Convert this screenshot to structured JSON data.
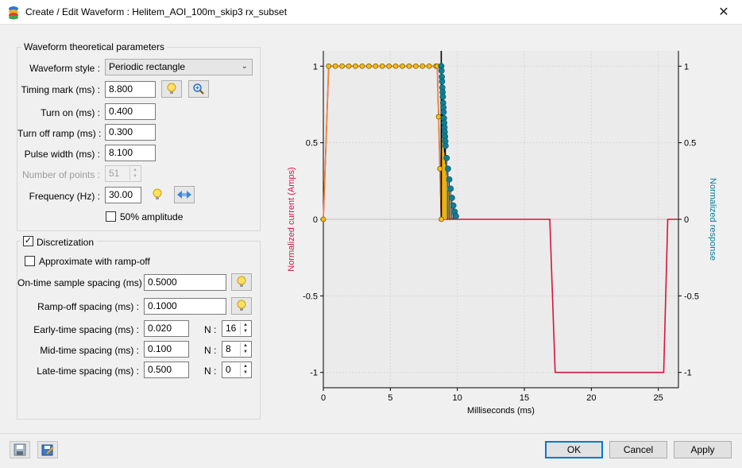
{
  "window": {
    "title": "Create / Edit Waveform : Helitem_AOI_100m_skip3 rx_subset",
    "close_label": "✕"
  },
  "waveform_params": {
    "group_title": "Waveform theoretical parameters",
    "style_label": "Waveform style :",
    "style_value": "Periodic rectangle",
    "timing_mark_label": "Timing mark (ms) :",
    "timing_mark_value": "8.800",
    "turn_on_label": "Turn on (ms) :",
    "turn_on_value": "0.400",
    "turn_off_ramp_label": "Turn off ramp (ms) :",
    "turn_off_ramp_value": "0.300",
    "pulse_width_label": "Pulse width (ms) :",
    "pulse_width_value": "8.100",
    "num_points_label": "Number of points :",
    "num_points_value": "51",
    "frequency_label": "Frequency (Hz) :",
    "frequency_value": "30.00",
    "half_amplitude_label": "50% amplitude",
    "half_amplitude_checked": false
  },
  "discretization": {
    "label": "Discretization",
    "checked": true,
    "approx_label": "Approximate with ramp-off",
    "approx_checked": false,
    "on_time_label": "On-time sample spacing (ms) :",
    "on_time_value": "0.5000",
    "ramp_off_label": "Ramp-off spacing (ms) :",
    "ramp_off_value": "0.1000",
    "early_label": "Early-time spacing (ms) :",
    "early_value": "0.020",
    "early_n_label": "N :",
    "early_n": "16",
    "mid_label": "Mid-time spacing (ms) :",
    "mid_value": "0.100",
    "mid_n_label": "N :",
    "mid_n": "8",
    "late_label": "Late-time spacing (ms) :",
    "late_value": "0.500",
    "late_n_label": "N :",
    "late_n": "0"
  },
  "buttons": {
    "ok": "OK",
    "cancel": "Cancel",
    "apply": "Apply"
  },
  "colors": {
    "current": "#d9133e",
    "response": "#0e7e95",
    "marker_fill": "#f6bd16",
    "pulse_orange": "#f08a2a"
  },
  "chart_data": {
    "type": "line",
    "xlabel": "Milliseconds (ms)",
    "ylabel_left": "Normalized current (Amps)",
    "ylabel_right": "Normalized response",
    "xlim": [
      0,
      26.5
    ],
    "ylim": [
      -1.1,
      1.1
    ],
    "x_ticks": [
      "0",
      "5",
      "10",
      "15",
      "20",
      "25"
    ],
    "y_ticks": [
      "1",
      "0.5",
      "0",
      "-0.5",
      "-1"
    ],
    "grid": true,
    "timing_mark_x": 8.8,
    "series": [
      {
        "role": "current",
        "x": [
          0,
          0.4,
          8.5,
          8.8,
          16.9,
          17.3,
          25.4,
          25.7,
          26.5
        ],
        "y": [
          0,
          1,
          1,
          0,
          0,
          -1,
          -1,
          0,
          0
        ]
      },
      {
        "role": "on_time_samples",
        "x": [
          0,
          0.4,
          0.9,
          1.4,
          1.9,
          2.4,
          2.9,
          3.4,
          3.9,
          4.4,
          4.9,
          5.4,
          5.9,
          6.4,
          6.9,
          7.4,
          7.9,
          8.4,
          8.5,
          8.6,
          8.7,
          8.8
        ],
        "y": [
          0,
          1,
          1,
          1,
          1,
          1,
          1,
          1,
          1,
          1,
          1,
          1,
          1,
          1,
          1,
          1,
          1,
          1,
          1,
          0.67,
          0.33,
          0
        ]
      },
      {
        "role": "response_samples",
        "x": [
          8.8,
          8.82,
          8.84,
          8.86,
          8.88,
          8.9,
          8.92,
          8.94,
          8.96,
          8.98,
          9.0,
          9.02,
          9.04,
          9.06,
          9.08,
          9.1,
          9.12,
          9.2,
          9.3,
          9.4,
          9.5,
          9.6,
          9.7,
          9.8,
          9.9
        ],
        "y": [
          1,
          0.97,
          0.93,
          0.9,
          0.86,
          0.83,
          0.8,
          0.76,
          0.73,
          0.7,
          0.66,
          0.63,
          0.6,
          0.57,
          0.54,
          0.51,
          0.48,
          0.4,
          0.33,
          0.26,
          0.2,
          0.14,
          0.09,
          0.05,
          0.02
        ]
      }
    ]
  }
}
